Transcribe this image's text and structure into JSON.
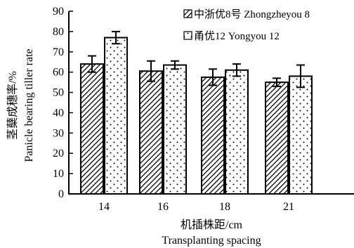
{
  "chart_data": {
    "type": "bar",
    "categories": [
      "14",
      "16",
      "18",
      "21"
    ],
    "series": [
      {
        "name": "中浙优8号 Zhongzheyou 8",
        "values": [
          64,
          60.5,
          57.5,
          55
        ],
        "errors": [
          4,
          5,
          4,
          2
        ],
        "pattern": "diagonal-hatch"
      },
      {
        "name": "甬优12 Yongyou 12",
        "values": [
          77,
          63.5,
          61,
          58
        ],
        "errors": [
          3,
          2,
          3,
          5.5
        ],
        "pattern": "dots"
      }
    ],
    "ylim": [
      0,
      90
    ],
    "yticks": [
      "0",
      "10",
      "20",
      "30",
      "40",
      "50",
      "60",
      "70",
      "80",
      "90"
    ],
    "ylabel_lines": [
      "茎蘖成穗率/%",
      "Panicle bearing tiller rate"
    ],
    "xlabel_lines": [
      "机插株距/cm",
      "Transplanting spacing"
    ],
    "legend_position": "top-right",
    "grid": false
  }
}
